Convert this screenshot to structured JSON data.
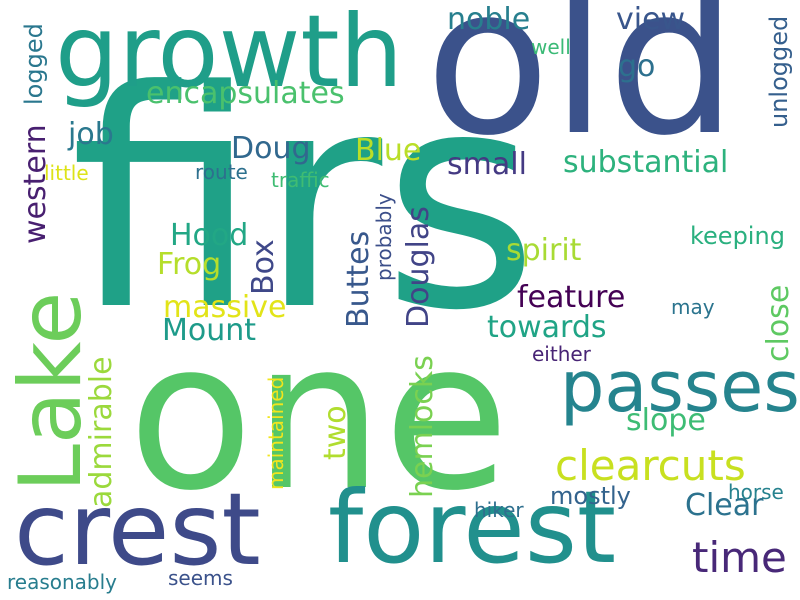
{
  "words": [
    {
      "text": "firs",
      "color": "#1fa187",
      "vertical": false
    },
    {
      "text": "one",
      "color": "#55c667",
      "vertical": false
    },
    {
      "text": "old",
      "color": "#3b528b",
      "vertical": false
    },
    {
      "text": "growth",
      "color": "#1f9e89",
      "vertical": false
    },
    {
      "text": "forest",
      "color": "#21908d",
      "vertical": false
    },
    {
      "text": "crest",
      "color": "#3e4a89",
      "vertical": false
    },
    {
      "text": "Lake",
      "color": "#6ccd5a",
      "vertical": true
    },
    {
      "text": "passes",
      "color": "#25848e",
      "vertical": false
    },
    {
      "text": "clearcuts",
      "color": "#c8e020",
      "vertical": false
    },
    {
      "text": "time",
      "color": "#482878",
      "vertical": false
    },
    {
      "text": "encapsulates",
      "color": "#4ac16d",
      "vertical": false
    },
    {
      "text": "substantial",
      "color": "#2db27d",
      "vertical": false
    },
    {
      "text": "Clear",
      "color": "#2c728e",
      "vertical": false
    },
    {
      "text": "noble",
      "color": "#277f8e",
      "vertical": false
    },
    {
      "text": "view",
      "color": "#39568c",
      "vertical": false
    },
    {
      "text": "go",
      "color": "#2d708e",
      "vertical": false
    },
    {
      "text": "small",
      "color": "#443a83",
      "vertical": false
    },
    {
      "text": "spirit",
      "color": "#a8db34",
      "vertical": false
    },
    {
      "text": "feature",
      "color": "#440154",
      "vertical": false
    },
    {
      "text": "towards",
      "color": "#20a486",
      "vertical": false
    },
    {
      "text": "slope",
      "color": "#3dbc74",
      "vertical": false
    },
    {
      "text": "Doug",
      "color": "#31688e",
      "vertical": false
    },
    {
      "text": "Blue",
      "color": "#bade28",
      "vertical": false
    },
    {
      "text": "Hood",
      "color": "#22a785",
      "vertical": false
    },
    {
      "text": "Frog",
      "color": "#b5de2b",
      "vertical": false
    },
    {
      "text": "massive",
      "color": "#e2e418",
      "vertical": false
    },
    {
      "text": "Mount",
      "color": "#1e9b8a",
      "vertical": false
    },
    {
      "text": "job",
      "color": "#2a788e",
      "vertical": false
    },
    {
      "text": "mostly",
      "color": "#33638d",
      "vertical": false
    },
    {
      "text": "keeping",
      "color": "#2ab07f",
      "vertical": false
    },
    {
      "text": "Box",
      "color": "#3f4889",
      "vertical": true
    },
    {
      "text": "Buttes",
      "color": "#38588c",
      "vertical": true
    },
    {
      "text": "Douglas",
      "color": "#414487",
      "vertical": true
    },
    {
      "text": "hemlocks",
      "color": "#7ad151",
      "vertical": true
    },
    {
      "text": "two",
      "color": "#b0dd2f",
      "vertical": true
    },
    {
      "text": "admirable",
      "color": "#9bd93c",
      "vertical": true
    },
    {
      "text": "western",
      "color": "#481f70",
      "vertical": true
    },
    {
      "text": "close",
      "color": "#5ec962",
      "vertical": true
    },
    {
      "text": "logged",
      "color": "#2a778e",
      "vertical": true
    },
    {
      "text": "unlogged",
      "color": "#355f8d",
      "vertical": true
    },
    {
      "text": "probably",
      "color": "#3c4f8a",
      "vertical": true
    },
    {
      "text": "maintained",
      "color": "#f1e51d",
      "vertical": true
    },
    {
      "text": "either",
      "color": "#482475",
      "vertical": false
    },
    {
      "text": "may",
      "color": "#2b748e",
      "vertical": false
    },
    {
      "text": "horse",
      "color": "#26828e",
      "vertical": false
    },
    {
      "text": "hiker",
      "color": "#2e6f8e",
      "vertical": false
    },
    {
      "text": "seems",
      "color": "#3b528b",
      "vertical": false
    },
    {
      "text": "reasonably",
      "color": "#287d8e",
      "vertical": false
    },
    {
      "text": "route",
      "color": "#2d708e",
      "vertical": false
    },
    {
      "text": "traffic",
      "color": "#3fbc73",
      "vertical": false
    },
    {
      "text": "little",
      "color": "#dde318",
      "vertical": false
    },
    {
      "text": "well",
      "color": "#3aba76",
      "vertical": false
    }
  ]
}
